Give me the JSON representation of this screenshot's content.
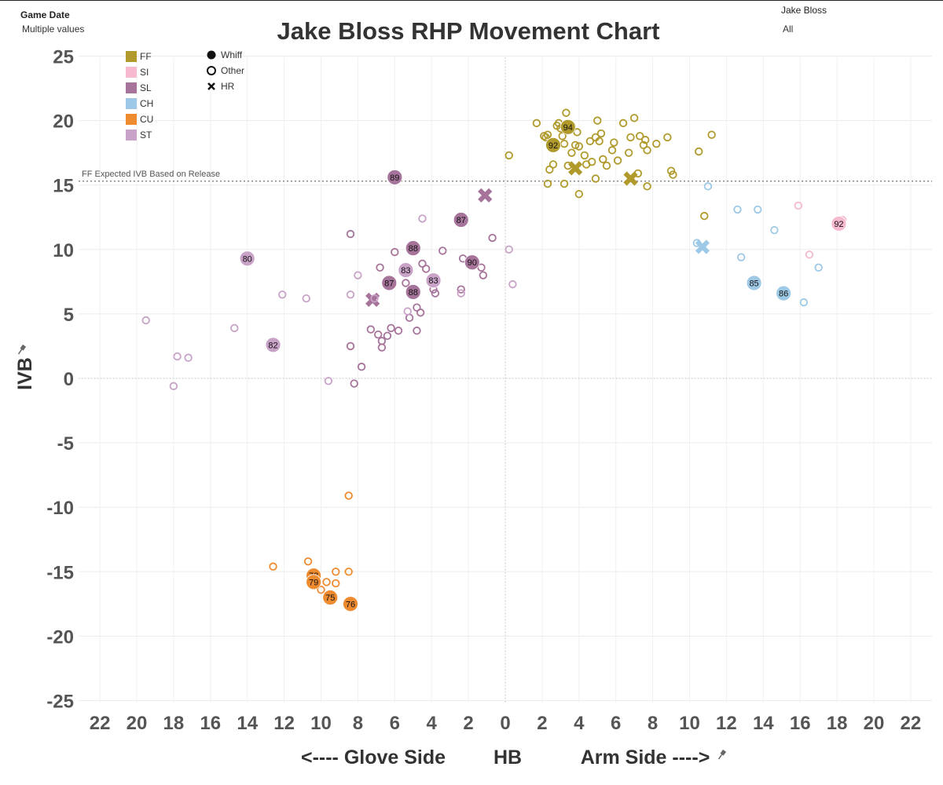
{
  "filters": {
    "game_date": {
      "label": "Game Date",
      "value": "Multiple values"
    },
    "pitcher": {
      "label": "Jake Bloss",
      "value": "All"
    }
  },
  "title": "Jake Bloss RHP Movement Chart",
  "chart_data": {
    "type": "scatter",
    "title": "Jake Bloss RHP Movement Chart",
    "xlabel": "<---- Glove Side        HB        Arm Side ---->",
    "xlabel_parts": {
      "left": "<---- Glove Side",
      "center": "HB",
      "right": "Arm Side ---->"
    },
    "ylabel": "IVB",
    "x_axis": {
      "ticks": [
        -22,
        -20,
        -18,
        -16,
        -14,
        -12,
        -10,
        -8,
        -6,
        -4,
        -2,
        0,
        2,
        4,
        6,
        8,
        10,
        12,
        14,
        16,
        18,
        20,
        22
      ],
      "tick_labels": [
        "22",
        "20",
        "18",
        "16",
        "14",
        "12",
        "10",
        "8",
        "6",
        "4",
        "2",
        "0",
        "2",
        "4",
        "6",
        "8",
        "10",
        "12",
        "14",
        "16",
        "18",
        "20",
        "22"
      ],
      "range": [
        -23,
        23
      ],
      "note": "negative = glove side, positive = arm side; labels shown as absolute values"
    },
    "y_axis": {
      "ticks": [
        25,
        20,
        15,
        10,
        5,
        0,
        -5,
        -10,
        -15,
        -20,
        -25
      ],
      "range": [
        -25,
        25
      ]
    },
    "grid": true,
    "reference_line": {
      "y": 15.3,
      "label": "FF Expected IVB Based on Release"
    },
    "zero_lines": {
      "x": 0,
      "y": 0
    },
    "legend_pitch": [
      {
        "code": "FF",
        "color": "#B19A2C"
      },
      {
        "code": "SI",
        "color": "#F6B9D0"
      },
      {
        "code": "SL",
        "color": "#A6739A"
      },
      {
        "code": "CH",
        "color": "#9DC9E6"
      },
      {
        "code": "CU",
        "color": "#EE8B2F"
      },
      {
        "code": "ST",
        "color": "#C9A2C8"
      }
    ],
    "legend_outcome": [
      {
        "label": "Whiff",
        "shape": "filled-circle"
      },
      {
        "label": "Other",
        "shape": "open-circle"
      },
      {
        "label": "HR",
        "shape": "x"
      }
    ],
    "series": [
      {
        "name": "FF",
        "color": "#B19A2C",
        "other": [
          [
            1.7,
            19.8
          ],
          [
            2.2,
            18.7
          ],
          [
            2.4,
            16.2
          ],
          [
            2.6,
            16.6
          ],
          [
            2.3,
            18.9
          ],
          [
            2.8,
            19.6
          ],
          [
            2.9,
            19.8
          ],
          [
            3.0,
            19.4
          ],
          [
            3.1,
            18.8
          ],
          [
            3.2,
            18.2
          ],
          [
            3.3,
            20.6
          ],
          [
            3.4,
            16.5
          ],
          [
            3.6,
            17.5
          ],
          [
            3.8,
            18.1
          ],
          [
            3.9,
            19.1
          ],
          [
            4.0,
            18.0
          ],
          [
            4.3,
            17.3
          ],
          [
            4.4,
            16.6
          ],
          [
            4.6,
            18.4
          ],
          [
            4.7,
            16.8
          ],
          [
            4.9,
            18.7
          ],
          [
            5.0,
            20.0
          ],
          [
            5.1,
            18.4
          ],
          [
            5.2,
            19.0
          ],
          [
            5.3,
            17.0
          ],
          [
            5.5,
            16.5
          ],
          [
            5.8,
            17.7
          ],
          [
            5.9,
            18.3
          ],
          [
            6.1,
            16.9
          ],
          [
            6.4,
            19.8
          ],
          [
            6.7,
            17.5
          ],
          [
            6.8,
            18.7
          ],
          [
            7.0,
            20.2
          ],
          [
            7.3,
            18.8
          ],
          [
            7.5,
            18.1
          ],
          [
            7.6,
            18.5
          ],
          [
            7.7,
            17.7
          ],
          [
            8.2,
            18.2
          ],
          [
            8.8,
            18.7
          ],
          [
            9.0,
            16.1
          ],
          [
            9.1,
            15.8
          ],
          [
            10.5,
            17.6
          ],
          [
            11.2,
            18.9
          ],
          [
            0.2,
            17.3
          ],
          [
            2.3,
            15.1
          ],
          [
            3.2,
            15.1
          ],
          [
            4.0,
            14.3
          ],
          [
            4.9,
            15.5
          ],
          [
            7.2,
            15.9
          ],
          [
            7.7,
            14.9
          ],
          [
            10.8,
            12.6
          ],
          [
            3.6,
            19.6
          ],
          [
            2.1,
            18.8
          ]
        ],
        "whiff": [
          {
            "x": 2.6,
            "y": 18.1,
            "label": "92"
          },
          {
            "x": 3.4,
            "y": 19.5,
            "label": "94"
          }
        ],
        "hr": [
          [
            3.8,
            16.3
          ],
          [
            6.8,
            15.5
          ]
        ]
      },
      {
        "name": "SI",
        "color": "#F6B9D0",
        "other": [
          [
            16.5,
            9.6
          ],
          [
            15.9,
            13.4
          ],
          [
            18.3,
            12.3
          ]
        ],
        "whiff": [
          {
            "x": 18.1,
            "y": 12.0,
            "label": "92"
          }
        ],
        "hr": []
      },
      {
        "name": "SL",
        "color": "#A6739A",
        "other": [
          [
            -8.4,
            11.2
          ],
          [
            -7.3,
            3.8
          ],
          [
            -6.9,
            3.4
          ],
          [
            -6.7,
            2.9
          ],
          [
            -6.7,
            2.4
          ],
          [
            -6.4,
            3.3
          ],
          [
            -6.2,
            3.9
          ],
          [
            -5.8,
            3.7
          ],
          [
            -6.0,
            9.8
          ],
          [
            -6.8,
            8.6
          ],
          [
            -5.4,
            7.4
          ],
          [
            -5.2,
            4.7
          ],
          [
            -4.8,
            5.5
          ],
          [
            -4.6,
            5.1
          ],
          [
            -4.5,
            8.9
          ],
          [
            -4.3,
            8.5
          ],
          [
            -3.9,
            6.9
          ],
          [
            -3.8,
            6.6
          ],
          [
            -3.4,
            9.9
          ],
          [
            -2.4,
            6.9
          ],
          [
            -2.3,
            9.3
          ],
          [
            -1.3,
            8.6
          ],
          [
            -1.2,
            8.0
          ],
          [
            -0.7,
            10.9
          ],
          [
            -8.4,
            2.5
          ],
          [
            -8.2,
            -0.4
          ],
          [
            -7.8,
            0.9
          ],
          [
            -4.8,
            3.7
          ]
        ],
        "whiff": [
          {
            "x": -6.0,
            "y": 15.6,
            "label": "89"
          },
          {
            "x": -2.4,
            "y": 12.3,
            "label": "87"
          },
          {
            "x": -5.0,
            "y": 10.1,
            "label": "88"
          },
          {
            "x": -1.8,
            "y": 9.0,
            "label": "90"
          },
          {
            "x": -6.3,
            "y": 7.4,
            "label": "87"
          },
          {
            "x": -5.0,
            "y": 6.7,
            "label": "88"
          }
        ],
        "hr": [
          [
            -1.1,
            14.2
          ],
          [
            -7.2,
            6.1
          ]
        ]
      },
      {
        "name": "CH",
        "color": "#9DC9E6",
        "other": [
          [
            11.0,
            14.9
          ],
          [
            10.4,
            10.5
          ],
          [
            12.6,
            13.1
          ],
          [
            13.7,
            13.1
          ],
          [
            12.8,
            9.4
          ],
          [
            14.6,
            11.5
          ],
          [
            16.2,
            5.9
          ],
          [
            17.0,
            8.6
          ]
        ],
        "whiff": [
          {
            "x": 13.5,
            "y": 7.4,
            "label": "85"
          },
          {
            "x": 15.1,
            "y": 6.6,
            "label": "86"
          }
        ],
        "hr": [
          [
            10.7,
            10.2
          ]
        ]
      },
      {
        "name": "CU",
        "color": "#EE8B2F",
        "other": [
          [
            -8.5,
            -9.1
          ],
          [
            -12.6,
            -14.6
          ],
          [
            -10.7,
            -14.2
          ],
          [
            -10.2,
            -15.3
          ],
          [
            -9.7,
            -15.8
          ],
          [
            -9.2,
            -15.0
          ],
          [
            -8.5,
            -15.0
          ],
          [
            -10.0,
            -16.4
          ],
          [
            -9.2,
            -15.9
          ],
          [
            -9.5,
            -16.8
          ]
        ],
        "whiff": [
          {
            "x": -10.4,
            "y": -15.3,
            "label": "78"
          },
          {
            "x": -10.4,
            "y": -15.8,
            "label": "79"
          },
          {
            "x": -9.5,
            "y": -17.0,
            "label": "75"
          },
          {
            "x": -8.4,
            "y": -17.5,
            "label": "76"
          }
        ],
        "hr": []
      },
      {
        "name": "ST",
        "color": "#C9A2C8",
        "other": [
          [
            -19.5,
            4.5
          ],
          [
            -17.8,
            1.7
          ],
          [
            -17.2,
            1.6
          ],
          [
            -18.0,
            -0.6
          ],
          [
            -14.7,
            3.9
          ],
          [
            -12.1,
            6.5
          ],
          [
            -10.8,
            6.2
          ],
          [
            -9.6,
            -0.2
          ],
          [
            -8.4,
            6.5
          ],
          [
            -8.0,
            8.0
          ],
          [
            -7.1,
            6.2
          ],
          [
            -5.3,
            5.2
          ],
          [
            -4.5,
            12.4
          ],
          [
            -2.4,
            6.6
          ],
          [
            0.2,
            10.0
          ],
          [
            0.4,
            7.3
          ]
        ],
        "whiff": [
          {
            "x": -14.0,
            "y": 9.3,
            "label": "80"
          },
          {
            "x": -12.6,
            "y": 2.6,
            "label": "82"
          },
          {
            "x": -5.4,
            "y": 8.4,
            "label": "83"
          },
          {
            "x": -3.9,
            "y": 7.6,
            "label": "83"
          }
        ],
        "hr": []
      }
    ]
  }
}
